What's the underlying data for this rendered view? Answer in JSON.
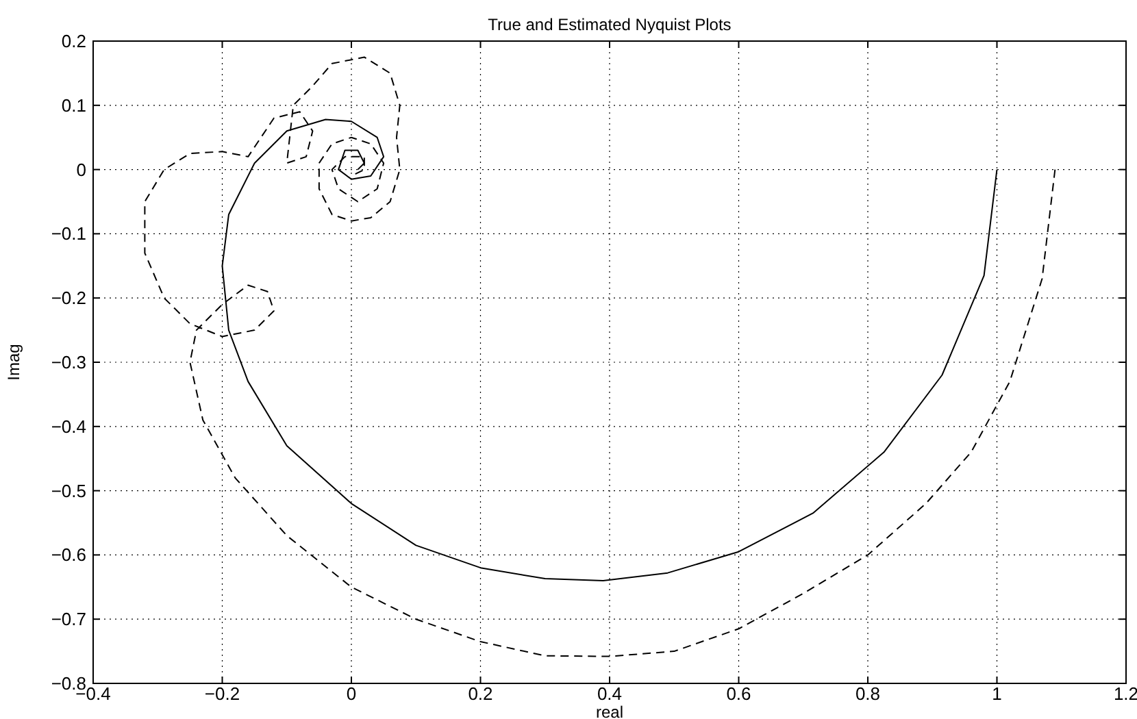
{
  "chart_data": {
    "type": "line",
    "title": "True and Estimated Nyquist Plots",
    "xlabel": "real",
    "ylabel": "Imag",
    "xlim": [
      -0.4,
      1.2
    ],
    "xticks": [
      -0.4,
      -0.2,
      0,
      0.2,
      0.4,
      0.6,
      0.8,
      1,
      1.2
    ],
    "ylim": [
      -0.8,
      0.2
    ],
    "yticks": [
      -0.8,
      -0.7,
      -0.6,
      -0.5,
      -0.4,
      -0.3,
      -0.2,
      -0.1,
      0,
      0.1,
      0.2
    ],
    "grid": true,
    "marker": "none",
    "series": [
      {
        "color": "#000000",
        "line_style": "solid",
        "x": [
          1,
          0.98,
          0.915,
          0.825,
          0.715,
          0.6,
          0.49,
          0.39,
          0.3,
          0.2,
          0.1,
          0,
          -0.1,
          -0.16,
          -0.19,
          -0.2,
          -0.19,
          -0.15,
          -0.1,
          -0.04,
          0,
          0.04,
          0.05,
          0.03,
          0,
          -0.02,
          -0.01,
          0.01,
          0.02,
          0.01
        ],
        "values": [
          0,
          -0.165,
          -0.32,
          -0.44,
          -0.535,
          -0.595,
          -0.628,
          -0.64,
          -0.637,
          -0.62,
          -0.585,
          -0.52,
          -0.43,
          -0.33,
          -0.25,
          -0.15,
          -0.07,
          0.01,
          0.06,
          0.078,
          0.075,
          0.05,
          0.02,
          -0.01,
          -0.015,
          0,
          0.03,
          0.03,
          0.01,
          0
        ]
      },
      {
        "color": "#000000",
        "line_style": "dashed",
        "x": [
          1.09,
          1.07,
          1.02,
          0.96,
          0.89,
          0.8,
          0.7,
          0.6,
          0.5,
          0.4,
          0.3,
          0.2,
          0.1,
          0,
          -0.1,
          -0.18,
          -0.23,
          -0.25,
          -0.24,
          -0.2,
          -0.16,
          -0.13,
          -0.12,
          -0.15,
          -0.2,
          -0.25,
          -0.29,
          -0.32,
          -0.32,
          -0.29,
          -0.25,
          -0.2,
          -0.16,
          -0.14,
          -0.12,
          -0.08,
          -0.06,
          -0.07,
          -0.1,
          -0.09,
          -0.06,
          -0.03,
          0.02,
          0.06,
          0.075,
          0.07,
          0.075,
          0.06,
          0.03,
          0,
          -0.03,
          -0.05,
          -0.05,
          -0.03,
          0,
          0.03,
          0.05,
          0.04,
          0.01,
          -0.02,
          -0.03,
          -0.01,
          0.02,
          0.02,
          0
        ],
        "values": [
          0,
          -0.17,
          -0.33,
          -0.44,
          -0.52,
          -0.6,
          -0.66,
          -0.715,
          -0.75,
          -0.758,
          -0.757,
          -0.735,
          -0.7,
          -0.65,
          -0.57,
          -0.48,
          -0.39,
          -0.3,
          -0.25,
          -0.21,
          -0.18,
          -0.19,
          -0.22,
          -0.25,
          -0.26,
          -0.24,
          -0.2,
          -0.13,
          -0.05,
          0,
          0.025,
          0.028,
          0.02,
          0.05,
          0.08,
          0.09,
          0.06,
          0.02,
          0.01,
          0.1,
          0.13,
          0.165,
          0.175,
          0.15,
          0.1,
          0.05,
          0,
          -0.05,
          -0.075,
          -0.08,
          -0.07,
          -0.03,
          0.01,
          0.04,
          0.05,
          0.04,
          0.01,
          -0.03,
          -0.05,
          -0.03,
          0,
          0.02,
          0.02,
          0,
          -0.01
        ]
      }
    ]
  }
}
